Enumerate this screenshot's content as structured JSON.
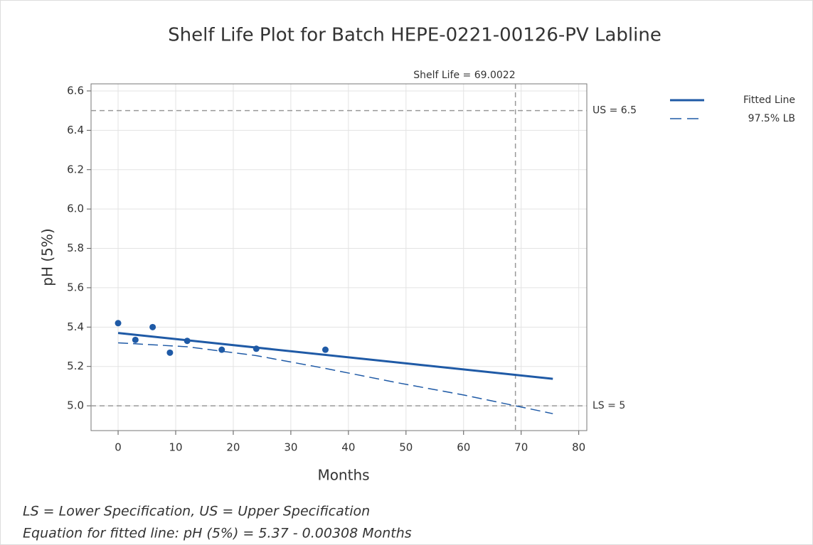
{
  "chart_data": {
    "type": "line",
    "title": "Shelf Life Plot for Batch HEPE-0221-00126-PV Labline",
    "xlabel": "Months",
    "ylabel": "pH (5%)",
    "xlim": [
      -4.7,
      81.4
    ],
    "ylim": [
      4.874,
      6.636
    ],
    "xticks": [
      0,
      10,
      20,
      30,
      40,
      50,
      60,
      70,
      80
    ],
    "yticks": [
      {
        "value": 5,
        "label": "5.0"
      },
      5.2,
      5.4,
      5.6,
      5.8,
      {
        "value": 6,
        "label": "6.0"
      },
      6.2,
      6.4,
      6.6
    ],
    "grid": true,
    "legend": "right",
    "series": [
      {
        "name": "Fitted Line",
        "color": "#1f5aa6",
        "style": "solid",
        "x": [
          0,
          75.5
        ],
        "values": [
          5.37,
          5.137
        ]
      },
      {
        "name": "97.5% LB",
        "color": "#1f5aa6",
        "style": "dashed",
        "x": [
          0,
          12,
          24,
          36,
          48,
          60,
          69,
          75.5
        ],
        "values": [
          5.32,
          5.3,
          5.255,
          5.19,
          5.12,
          5.055,
          5.0,
          4.96
        ]
      }
    ],
    "points": {
      "color": "#1f5aa6",
      "x": [
        0,
        3,
        6,
        9,
        12,
        18,
        24,
        36
      ],
      "values": [
        5.42,
        5.335,
        5.4,
        5.27,
        5.33,
        5.285,
        5.29,
        5.285
      ]
    },
    "reference_lines": [
      {
        "axis": "y",
        "value": 6.5,
        "label": "US = 6.5"
      },
      {
        "axis": "y",
        "value": 5,
        "label": "LS = 5"
      },
      {
        "axis": "x",
        "value": 69.0022,
        "label": "Shelf Life = 69.0022"
      }
    ],
    "notes": [
      "LS = Lower Specification, US = Upper Specification",
      "Equation for fitted line: pH (5%) = 5.37 - 0.00308 Months"
    ]
  }
}
